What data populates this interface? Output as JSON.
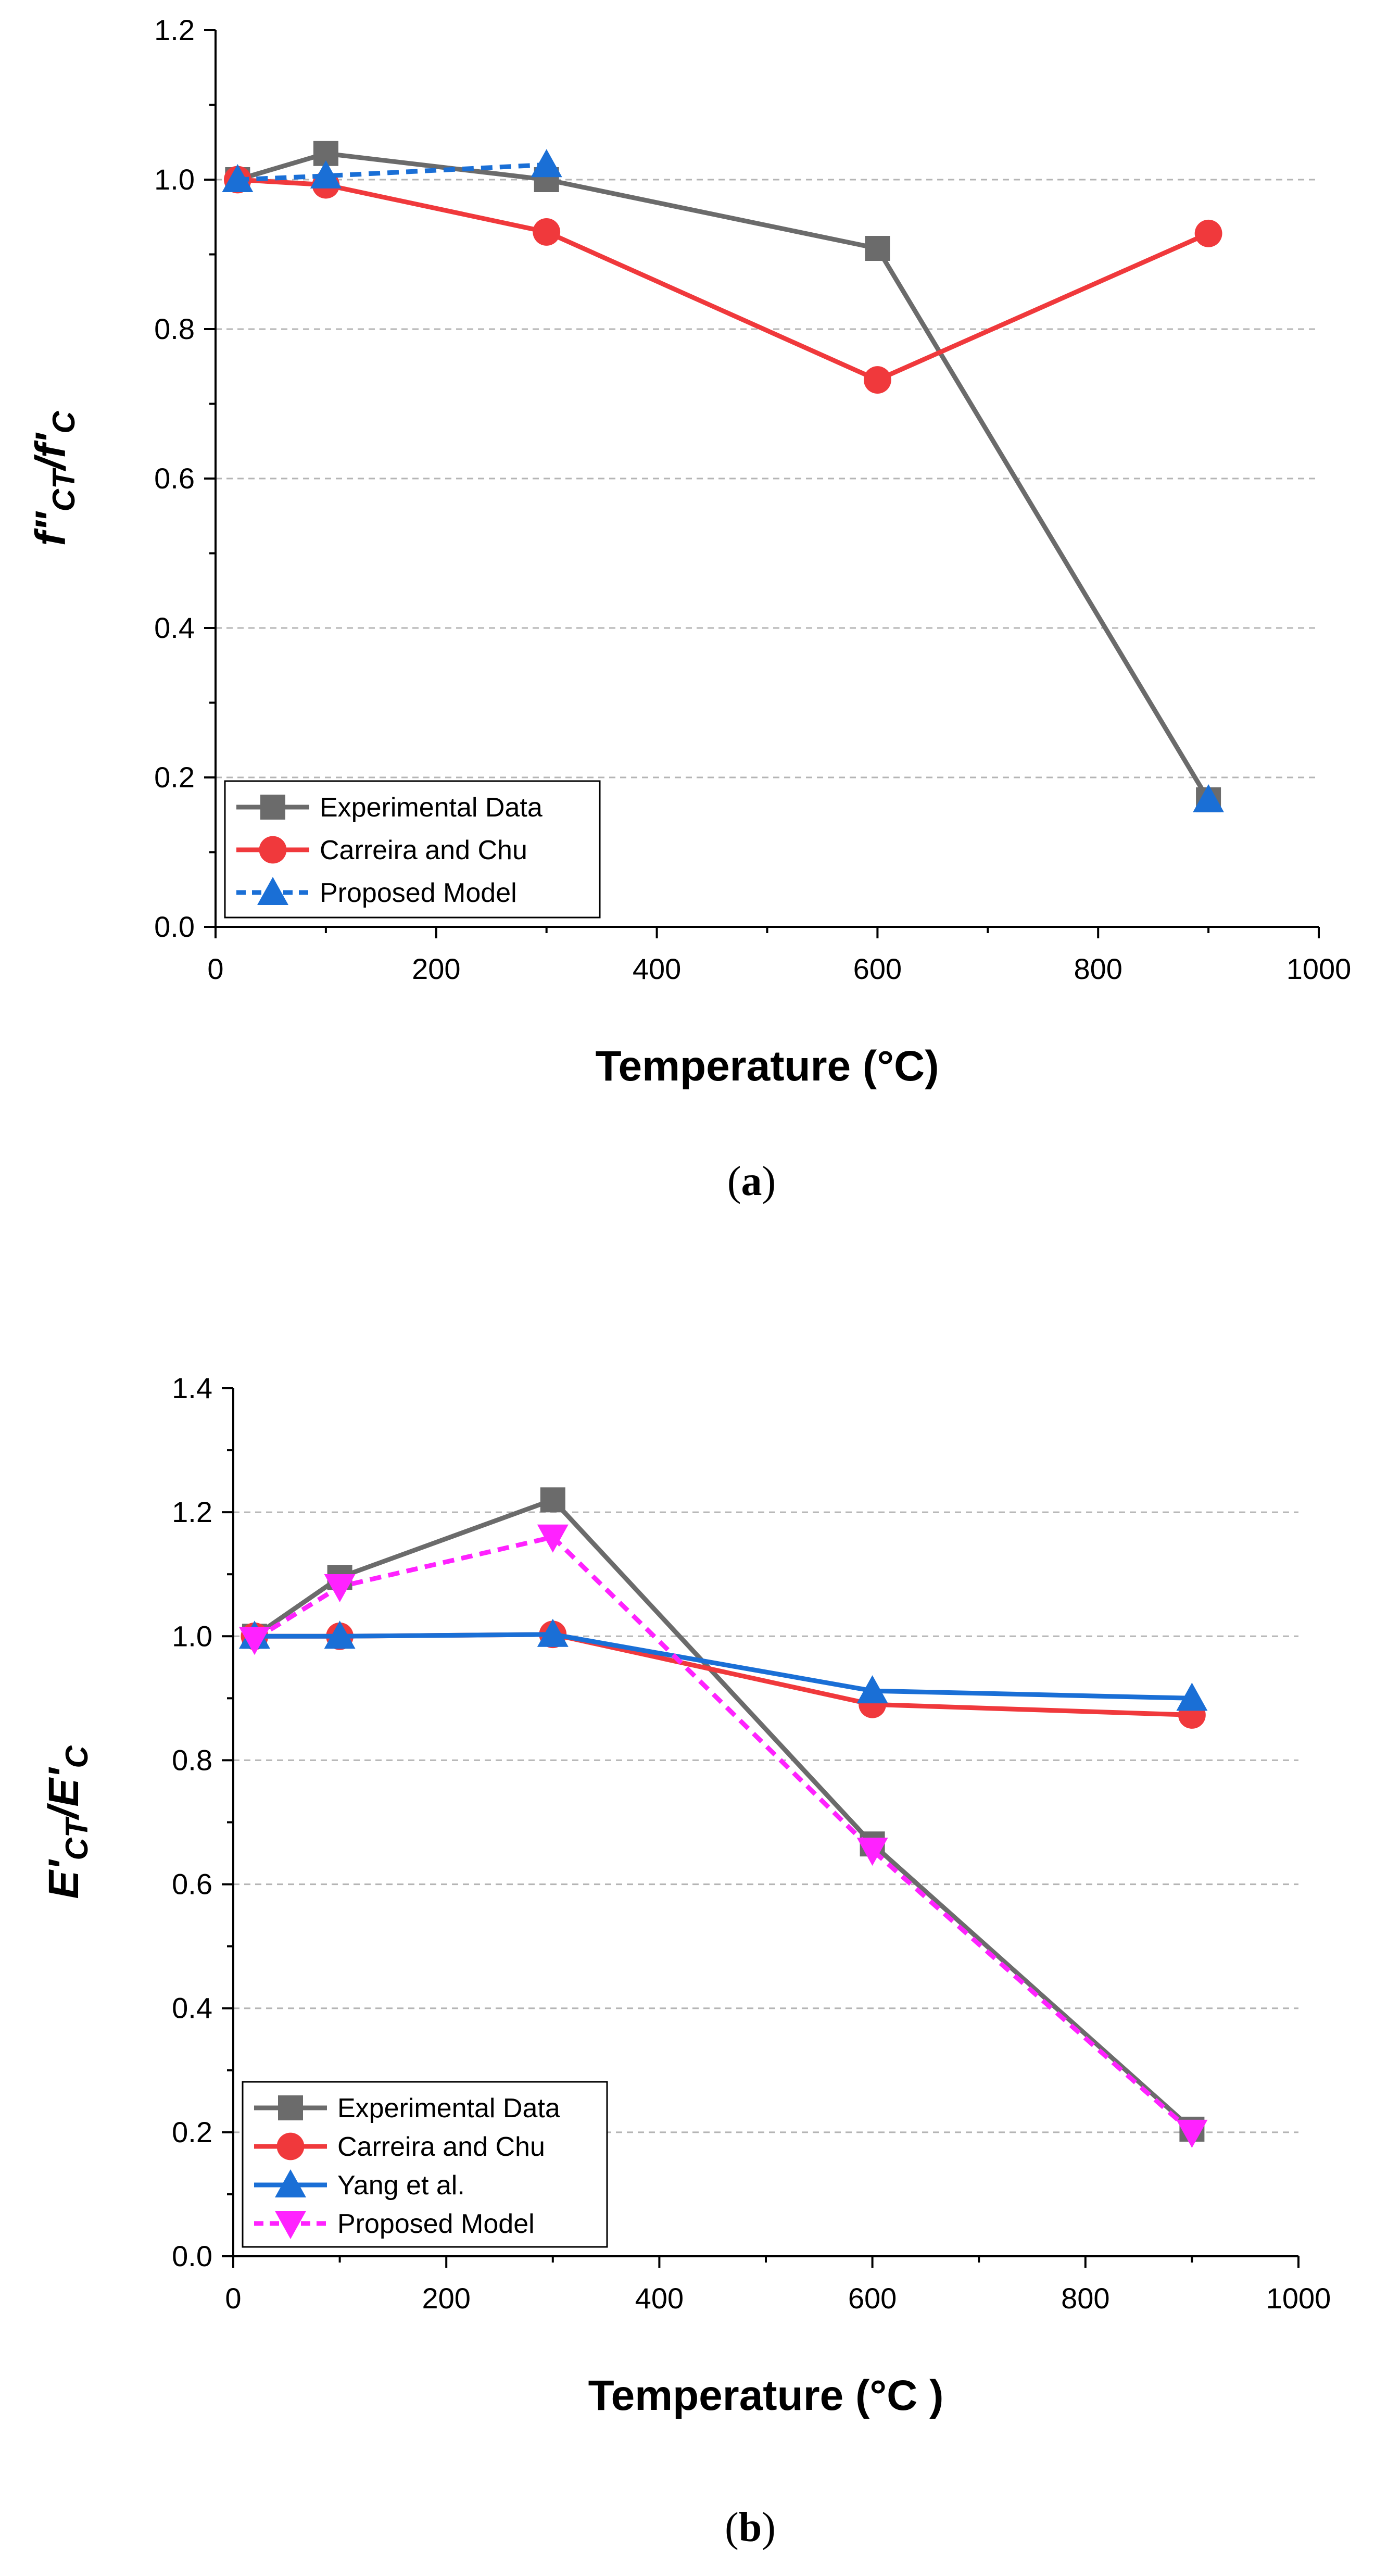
{
  "chart_data": [
    {
      "type": "line",
      "panel_label": "a",
      "xlabel": "Temperature (°C)",
      "ylabel": "f″CT/f′C",
      "ylabel_parts": {
        "main1": "f\"",
        "sub1": "CT",
        "mid": "/f'",
        "sub2": "C"
      },
      "xlim": [
        0,
        1000
      ],
      "ylim": [
        0.0,
        1.2
      ],
      "xticks": [
        "0",
        "200",
        "400",
        "600",
        "800",
        "1000"
      ],
      "yticks": [
        "0.0",
        "0.2",
        "0.4",
        "0.6",
        "0.8",
        "1.0",
        "1.2"
      ],
      "grid": "horizontal dashed",
      "legend_position": "bottom-left",
      "series": [
        {
          "name": "Experimental Data",
          "color": "#6b6b6b",
          "marker": "square",
          "dash": "solid",
          "x": [
            20,
            100,
            300,
            600,
            900
          ],
          "y": [
            1.0,
            1.035,
            1.0,
            0.908,
            0.17
          ]
        },
        {
          "name": "Carreira and Chu",
          "color": "#f0393c",
          "marker": "circle",
          "dash": "solid",
          "x": [
            20,
            100,
            300,
            600,
            900
          ],
          "y": [
            1.0,
            0.993,
            0.93,
            0.732,
            0.928
          ]
        },
        {
          "name": "Proposed Model",
          "color": "#1a6fd6",
          "marker": "triangle-up",
          "dash": "dashed",
          "x": [
            20,
            100,
            300,
            null,
            900
          ],
          "y": [
            1.0,
            1.005,
            1.02,
            null,
            0.17
          ]
        }
      ]
    },
    {
      "type": "line",
      "panel_label": "b",
      "xlabel": "Temperature (°C )",
      "ylabel": "E′CT/E′C",
      "ylabel_parts": {
        "main1": "E'",
        "sub1": "CT",
        "mid": "/E'",
        "sub2": "C"
      },
      "xlim": [
        0,
        1000
      ],
      "ylim": [
        0.0,
        1.4
      ],
      "xticks": [
        "0",
        "200",
        "400",
        "600",
        "800",
        "1000"
      ],
      "yticks": [
        "0.0",
        "0.2",
        "0.4",
        "0.6",
        "0.8",
        "1.0",
        "1.2",
        "1.4"
      ],
      "grid": "horizontal dashed",
      "legend_position": "bottom-left",
      "series": [
        {
          "name": "Experimental Data",
          "color": "#6b6b6b",
          "marker": "square",
          "dash": "solid",
          "x": [
            20,
            100,
            300,
            600,
            900
          ],
          "y": [
            1.0,
            1.095,
            1.22,
            0.665,
            0.205
          ]
        },
        {
          "name": "Carreira and Chu",
          "color": "#f0393c",
          "marker": "circle",
          "dash": "solid",
          "x": [
            20,
            100,
            300,
            600,
            900
          ],
          "y": [
            1.0,
            1.0,
            1.003,
            0.89,
            0.873
          ]
        },
        {
          "name": "Yang et al.",
          "color": "#1a6fd6",
          "marker": "triangle-up",
          "dash": "solid",
          "x": [
            20,
            100,
            300,
            600,
            900
          ],
          "y": [
            1.0,
            1.0,
            1.003,
            0.912,
            0.9
          ]
        },
        {
          "name": "Proposed Model",
          "color": "#ff22ff",
          "marker": "triangle-down",
          "dash": "dashed",
          "x": [
            20,
            100,
            300,
            600,
            900
          ],
          "y": [
            0.995,
            1.08,
            1.16,
            0.655,
            0.2
          ]
        }
      ]
    }
  ]
}
